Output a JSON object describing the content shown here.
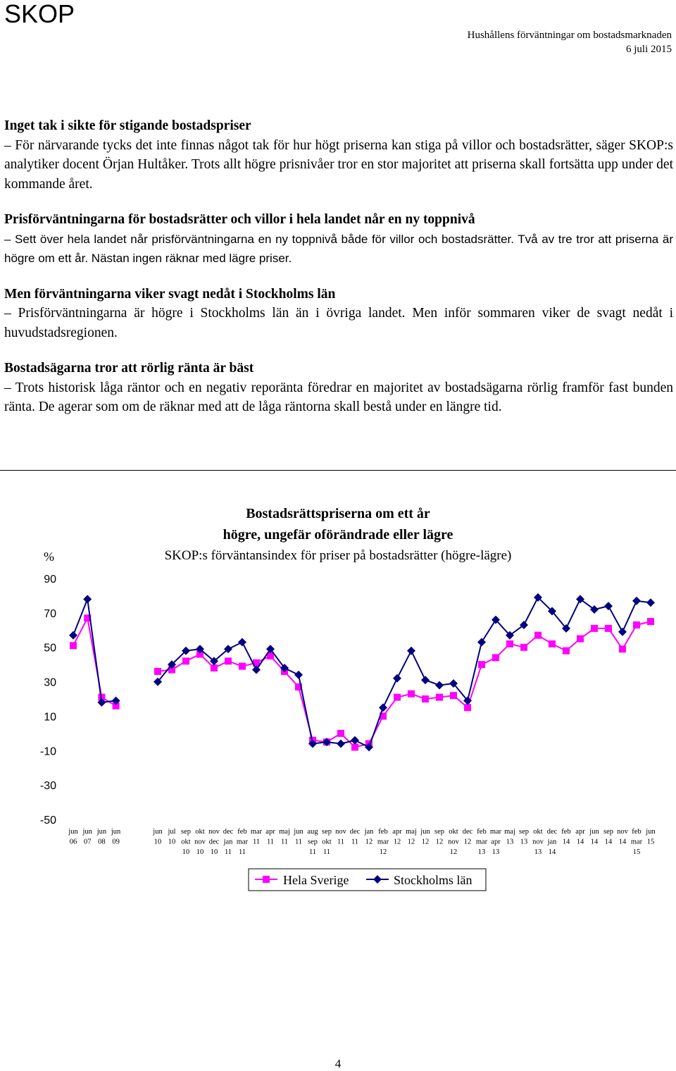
{
  "header": {
    "brand": "SKOP",
    "report_title": "Hushållens förväntningar om bostadsmarknaden",
    "date": "6 juli 2015"
  },
  "sections": [
    {
      "heading": "Inget tak i sikte för stigande bostadspriser",
      "body": "– För närvarande tycks det inte finnas något tak för hur högt priserna kan stiga på villor och bostadsrätter, säger SKOP:s analytiker docent Örjan Hultåker. Trots allt högre prisnivåer tror en stor majoritet att priserna skall fortsätta upp under det kommande året."
    },
    {
      "heading": "Prisförväntningarna för bostadsrätter och villor i hela landet når en ny toppnivå",
      "body": "– Sett över hela landet når prisförväntningarna en ny toppnivå både för villor och bostadsrätter. Två av tre tror att priserna är högre om ett år. Nästan ingen räknar med lägre priser."
    },
    {
      "heading": "Men förväntningarna viker svagt nedåt i Stockholms län",
      "body": "– Prisförväntningarna är högre i Stockholms län än i övriga landet. Men inför sommaren viker de svagt nedåt i huvudstadsregionen."
    },
    {
      "heading": "Bostadsägarna tror att rörlig ränta är bäst",
      "body": "– Trots historisk låga räntor och en negativ reporänta föredrar en majoritet av bostadsägarna rörlig framför fast bunden ränta. De agerar som om de räknar med att de låga räntorna skall bestå under en längre tid."
    }
  ],
  "chart_data": {
    "type": "line",
    "title": "Bostadsrättspriserna om ett år",
    "title_line2": "högre, ungefär oförändrade eller lägre",
    "subtitle": "SKOP:s förväntansindex för priser på bostadsrätter (högre-lägre)",
    "ylabel": "%",
    "ylim": [
      -50,
      90
    ],
    "yticks": [
      90,
      70,
      50,
      30,
      10,
      -10,
      -30,
      -50
    ],
    "grid": false,
    "legend_position": "bottom",
    "categories": [
      [
        "jun",
        "06"
      ],
      [
        "jun",
        "07"
      ],
      [
        "jun",
        "08"
      ],
      [
        "jun",
        "09"
      ],
      [
        "jun",
        "10"
      ],
      [
        "jul",
        "10"
      ],
      [
        "sep",
        "okt",
        "10"
      ],
      [
        "okt",
        "nov",
        "10"
      ],
      [
        "nov",
        "dec",
        "10"
      ],
      [
        "dec",
        "jan",
        "11"
      ],
      [
        "feb",
        "mar",
        "11"
      ],
      [
        "mar",
        "11"
      ],
      [
        "apr",
        "11"
      ],
      [
        "maj",
        "11"
      ],
      [
        "jun",
        "11"
      ],
      [
        "aug",
        "sep",
        "11"
      ],
      [
        "sep",
        "okt",
        "11"
      ],
      [
        "nov",
        "11"
      ],
      [
        "dec",
        "11"
      ],
      [
        "jan",
        "12"
      ],
      [
        "feb",
        "mar",
        "12"
      ],
      [
        "apr",
        "12"
      ],
      [
        "maj",
        "12"
      ],
      [
        "jun",
        "12"
      ],
      [
        "sep",
        "12"
      ],
      [
        "okt",
        "nov",
        "12"
      ],
      [
        "dec",
        "12"
      ],
      [
        "feb",
        "mar",
        "13"
      ],
      [
        "mar",
        "apr",
        "13"
      ],
      [
        "maj",
        "13"
      ],
      [
        "sep",
        "13"
      ],
      [
        "okt",
        "nov",
        "13"
      ],
      [
        "dec",
        "jan",
        "14"
      ],
      [
        "feb",
        "14"
      ],
      [
        "apr",
        "14"
      ],
      [
        "jun",
        "14"
      ],
      [
        "sep",
        "14"
      ],
      [
        "nov",
        "14"
      ],
      [
        "feb",
        "mar",
        "15"
      ],
      [
        "jun",
        "15"
      ]
    ],
    "segments": [
      [
        0,
        3
      ],
      [
        4,
        39
      ]
    ],
    "series": [
      {
        "name": "Hela Sverige",
        "color": "#ff00ff",
        "marker": "square",
        "values": [
          51,
          67,
          21,
          16,
          36,
          37,
          42,
          46,
          38,
          42,
          39,
          41,
          45,
          36,
          27,
          -4,
          -5,
          0,
          -8,
          -6,
          10,
          21,
          23,
          20,
          21,
          22,
          15,
          40,
          44,
          52,
          50,
          57,
          52,
          48,
          55,
          61,
          61,
          49,
          63,
          65
        ]
      },
      {
        "name": "Stockholms län",
        "color": "#000080",
        "marker": "diamond",
        "values": [
          57,
          78,
          18,
          19,
          30,
          40,
          48,
          49,
          42,
          49,
          53,
          37,
          49,
          38,
          34,
          -6,
          -5,
          -6,
          -4,
          -8,
          15,
          32,
          48,
          31,
          28,
          29,
          19,
          53,
          66,
          57,
          63,
          79,
          71,
          61,
          78,
          72,
          74,
          59,
          77,
          76
        ]
      }
    ]
  },
  "footer": {
    "page_number": "4"
  }
}
